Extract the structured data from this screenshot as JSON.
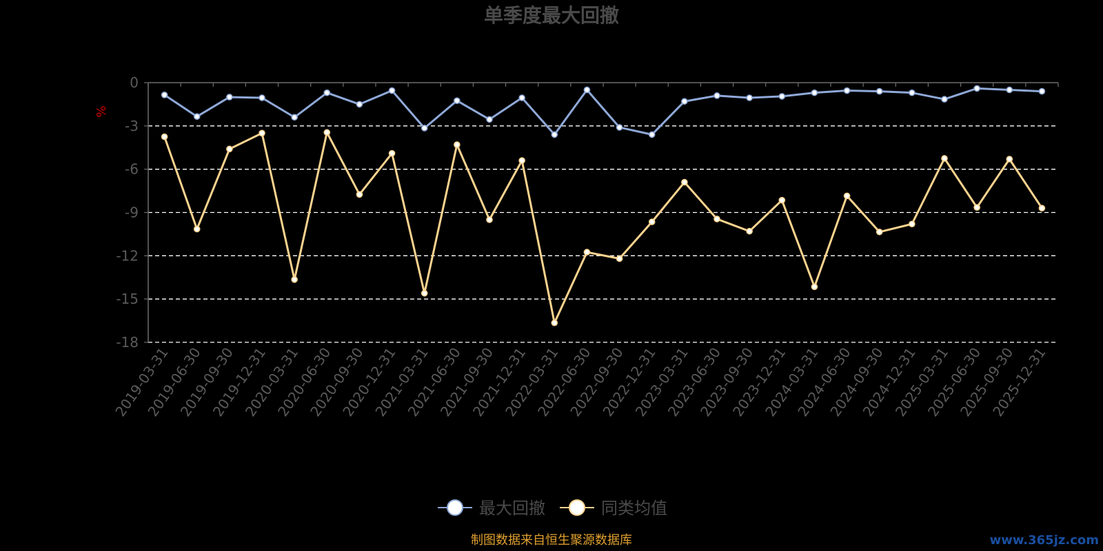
{
  "chart_data": {
    "type": "line",
    "title": "单季度最大回撤",
    "ylabel": "%",
    "ylim": [
      -18,
      0
    ],
    "yticks": [
      0,
      -3,
      -6,
      -9,
      -12,
      -15,
      -18
    ],
    "grid": true,
    "legend_position": "bottom-center",
    "categories": [
      "2019-03-31",
      "2019-06-30",
      "2019-09-30",
      "2019-12-31",
      "2020-03-31",
      "2020-06-30",
      "2020-09-30",
      "2020-12-31",
      "2021-03-31",
      "2021-06-30",
      "2021-09-30",
      "2021-12-31",
      "2022-03-31",
      "2022-06-30",
      "2022-09-30",
      "2022-12-31",
      "2023-03-31",
      "2023-06-30",
      "2023-09-30",
      "2023-12-31",
      "2024-03-31",
      "2024-06-30",
      "2024-09-30",
      "2024-12-31",
      "2025-03-31",
      "2025-06-30",
      "2025-09-30",
      "2025-12-31"
    ],
    "series": [
      {
        "name": "最大回撤",
        "color": "#8fa9d8",
        "values": [
          -0.85,
          -2.35,
          -1.0,
          -1.05,
          -2.4,
          -0.7,
          -1.5,
          -0.55,
          -3.15,
          -1.25,
          -2.55,
          -1.05,
          -3.6,
          -0.5,
          -3.1,
          -3.6,
          -1.3,
          -0.9,
          -1.05,
          -0.95,
          -0.7,
          -0.55,
          -0.6,
          -0.7,
          -1.15,
          -0.4,
          -0.5,
          -0.6
        ]
      },
      {
        "name": "同类均值",
        "color": "#fbd38f",
        "values": [
          -3.75,
          -10.15,
          -4.6,
          -3.5,
          -13.65,
          -3.45,
          -7.75,
          -4.9,
          -14.6,
          -4.3,
          -9.5,
          -5.4,
          -16.65,
          -11.75,
          -12.2,
          -9.65,
          -6.9,
          -9.45,
          -10.3,
          -8.15,
          -14.15,
          -7.85,
          -10.35,
          -9.8,
          -5.25,
          -8.65,
          -5.3,
          -8.7
        ]
      }
    ]
  },
  "colors": {
    "background": "#000000",
    "axis": "#6e6e6e",
    "tick_text": "#5a5a5a",
    "title": "#4a4a4a",
    "grid": "#ffffff",
    "ylabel": "#cc0000",
    "legend_text": "#4a4a4a",
    "source": "#e0a030",
    "watermark": "#1a4fa0"
  },
  "footer": {
    "source_note": "制图数据来自恒生聚源数据库",
    "watermark": "www.365jz.com"
  }
}
